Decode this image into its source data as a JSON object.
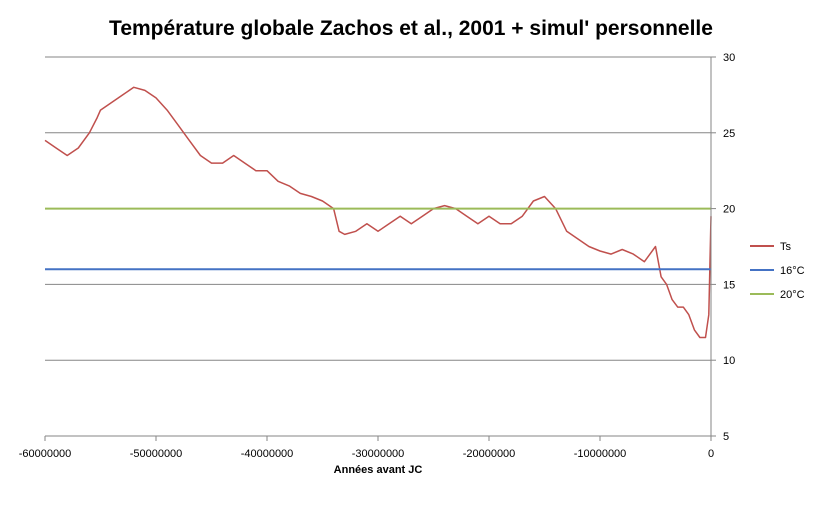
{
  "chart_data": {
    "type": "line",
    "title": "Température globale Zachos et al., 2001 + simul' personnelle",
    "xlabel": "Années avant JC",
    "ylabel": "",
    "xlim": [
      -60000000,
      0
    ],
    "ylim": [
      5,
      30
    ],
    "x_ticks": [
      -60000000,
      -50000000,
      -40000000,
      -30000000,
      -20000000,
      -10000000,
      0
    ],
    "x_tick_labels": [
      "-60000000",
      "-50000000",
      "-40000000",
      "-30000000",
      "-20000000",
      "-10000000",
      "0"
    ],
    "y_ticks": [
      5,
      10,
      15,
      20,
      25,
      30
    ],
    "y_tick_labels": [
      "5",
      "10",
      "15",
      "20",
      "25",
      "30"
    ],
    "y_axis_side": "right",
    "grid": "horizontal",
    "legend_position": "right",
    "series": [
      {
        "name": "Ts",
        "color": "#C0504D",
        "x": [
          -60000000,
          -59000000,
          -58000000,
          -57000000,
          -56000000,
          -55300000,
          -55000000,
          -54000000,
          -53000000,
          -52000000,
          -51000000,
          -50000000,
          -49000000,
          -48000000,
          -47000000,
          -46000000,
          -45000000,
          -44000000,
          -43000000,
          -42000000,
          -41000000,
          -40000000,
          -39000000,
          -38000000,
          -37000000,
          -36000000,
          -35000000,
          -34000000,
          -33500000,
          -33000000,
          -32000000,
          -31000000,
          -30000000,
          -29000000,
          -28000000,
          -27000000,
          -26000000,
          -25000000,
          -24000000,
          -23000000,
          -22000000,
          -21000000,
          -20000000,
          -19000000,
          -18000000,
          -17000000,
          -16000000,
          -15000000,
          -14000000,
          -13000000,
          -12000000,
          -11000000,
          -10000000,
          -9000000,
          -8000000,
          -7000000,
          -6000000,
          -5000000,
          -4500000,
          -4000000,
          -3500000,
          -3000000,
          -2500000,
          -2000000,
          -1500000,
          -1000000,
          -500000,
          -200000,
          0
        ],
        "y": [
          24.5,
          24.0,
          23.5,
          24.0,
          25.0,
          26.0,
          26.5,
          27.0,
          27.5,
          28.0,
          27.8,
          27.3,
          26.5,
          25.5,
          24.5,
          23.5,
          23.0,
          23.0,
          23.5,
          23.0,
          22.5,
          22.5,
          21.8,
          21.5,
          21.0,
          20.8,
          20.5,
          20.0,
          18.5,
          18.3,
          18.5,
          19.0,
          18.5,
          19.0,
          19.5,
          19.0,
          19.5,
          20.0,
          20.2,
          20.0,
          19.5,
          19.0,
          19.5,
          19.0,
          19.0,
          19.5,
          20.5,
          20.8,
          20.0,
          18.5,
          18.0,
          17.5,
          17.2,
          17.0,
          17.3,
          17.0,
          16.5,
          17.5,
          15.5,
          15.0,
          14.0,
          13.5,
          13.5,
          13.0,
          12.0,
          11.5,
          11.5,
          13.0,
          19.5
        ]
      },
      {
        "name": "16°C",
        "color": "#4472C4",
        "x": [
          -60000000,
          0
        ],
        "y": [
          16,
          16
        ]
      },
      {
        "name": "20°C",
        "color": "#9BBB59",
        "x": [
          -60000000,
          0
        ],
        "y": [
          20,
          20
        ]
      }
    ]
  }
}
